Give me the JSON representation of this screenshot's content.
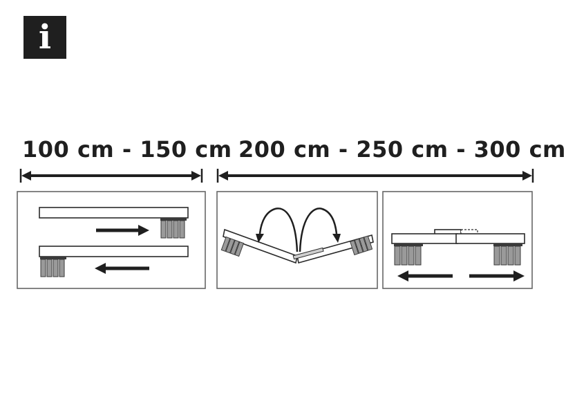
{
  "badge": {
    "glyph": "i",
    "icon": "info-icon"
  },
  "ranges": {
    "short": "100 cm - 150 cm",
    "long": "200 cm - 250 cm - 300 cm"
  },
  "colors": {
    "ink": "#1f1f1f",
    "panel_border": "#666666",
    "bristle": "#9a9a9a",
    "background": "#ffffff"
  },
  "panels": [
    {
      "id": "slide",
      "shows": "two overlapping bars sliding in opposite directions"
    },
    {
      "id": "fold",
      "shows": "hinged bar folded open with curved arrows"
    },
    {
      "id": "extend",
      "shows": "telescoping bar extended outward in both directions"
    }
  ]
}
